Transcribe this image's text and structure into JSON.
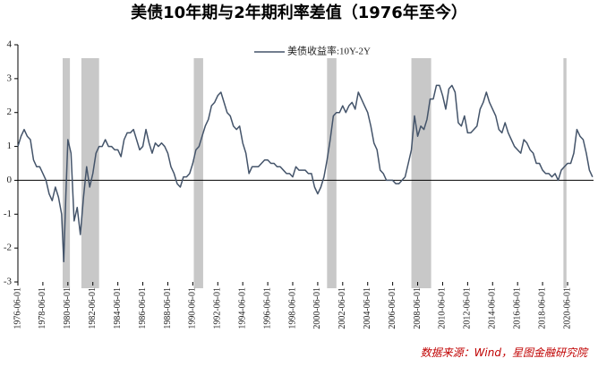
{
  "chart_data": {
    "type": "line",
    "title": "美债10年期与2年期利率差值（1976年至今）",
    "source": "数据来源：Wind，星图金融研究院",
    "legend_position": "top",
    "xlim": [
      "1976-06-01",
      "2022-06-30"
    ],
    "xticks": [
      "1976-06-01",
      "1978-06-01",
      "1980-06-01",
      "1982-06-01",
      "1984-06-01",
      "1986-06-01",
      "1988-06-01",
      "1990-06-01",
      "1992-06-01",
      "1994-06-01",
      "1996-06-01",
      "1998-06-01",
      "2000-06-01",
      "2002-06-01",
      "2004-06-01",
      "2006-06-01",
      "2008-06-01",
      "2010-06-01",
      "2012-06-01",
      "2014-06-01",
      "2016-06-01",
      "2018-06-01",
      "2020-06-01"
    ],
    "ylim": [
      -3,
      4
    ],
    "yticks": [
      -3,
      -2,
      -1,
      0,
      1,
      2,
      3,
      4
    ],
    "shaded_periods": [
      {
        "start": "1980-01-01",
        "end": "1980-07-31",
        "color": "#c8c8c8"
      },
      {
        "start": "1981-07-01",
        "end": "1982-11-30",
        "color": "#c8c8c8"
      },
      {
        "start": "1990-07-01",
        "end": "1991-03-31",
        "color": "#c8c8c8"
      },
      {
        "start": "2001-03-01",
        "end": "2001-11-30",
        "color": "#c8c8c8"
      },
      {
        "start": "2007-12-01",
        "end": "2009-06-30",
        "color": "#c8c8c8"
      },
      {
        "start": "2020-02-01",
        "end": "2020-04-30",
        "color": "#c8c8c8"
      }
    ],
    "x": [
      "1976-06-01",
      "1976-09-01",
      "1976-12-01",
      "1977-03-01",
      "1977-06-01",
      "1977-09-01",
      "1977-12-01",
      "1978-03-01",
      "1978-06-01",
      "1978-09-01",
      "1978-12-01",
      "1979-03-01",
      "1979-06-01",
      "1979-09-01",
      "1979-12-01",
      "1980-02-01",
      "1980-04-01",
      "1980-06-01",
      "1980-09-01",
      "1980-12-01",
      "1981-03-01",
      "1981-06-01",
      "1981-09-01",
      "1981-12-01",
      "1982-03-01",
      "1982-06-01",
      "1982-09-01",
      "1982-12-01",
      "1983-03-01",
      "1983-06-01",
      "1983-09-01",
      "1983-12-01",
      "1984-03-01",
      "1984-06-01",
      "1984-09-01",
      "1984-12-01",
      "1985-03-01",
      "1985-06-01",
      "1985-09-01",
      "1985-12-01",
      "1986-03-01",
      "1986-06-01",
      "1986-09-01",
      "1986-12-01",
      "1987-03-01",
      "1987-06-01",
      "1987-09-01",
      "1987-12-01",
      "1988-03-01",
      "1988-06-01",
      "1988-09-01",
      "1988-12-01",
      "1989-03-01",
      "1989-06-01",
      "1989-09-01",
      "1989-12-01",
      "1990-03-01",
      "1990-06-01",
      "1990-09-01",
      "1990-12-01",
      "1991-03-01",
      "1991-06-01",
      "1991-09-01",
      "1991-12-01",
      "1992-03-01",
      "1992-06-01",
      "1992-09-01",
      "1992-12-01",
      "1993-03-01",
      "1993-06-01",
      "1993-09-01",
      "1993-12-01",
      "1994-03-01",
      "1994-06-01",
      "1994-09-01",
      "1994-12-01",
      "1995-03-01",
      "1995-06-01",
      "1995-09-01",
      "1995-12-01",
      "1996-03-01",
      "1996-06-01",
      "1996-09-01",
      "1996-12-01",
      "1997-03-01",
      "1997-06-01",
      "1997-09-01",
      "1997-12-01",
      "1998-03-01",
      "1998-06-01",
      "1998-09-01",
      "1998-12-01",
      "1999-03-01",
      "1999-06-01",
      "1999-09-01",
      "1999-12-01",
      "2000-03-01",
      "2000-06-01",
      "2000-09-01",
      "2000-12-01",
      "2001-03-01",
      "2001-06-01",
      "2001-09-01",
      "2001-12-01",
      "2002-03-01",
      "2002-06-01",
      "2002-09-01",
      "2002-12-01",
      "2003-03-01",
      "2003-06-01",
      "2003-09-01",
      "2003-12-01",
      "2004-03-01",
      "2004-06-01",
      "2004-09-01",
      "2004-12-01",
      "2005-03-01",
      "2005-06-01",
      "2005-09-01",
      "2005-12-01",
      "2006-03-01",
      "2006-06-01",
      "2006-09-01",
      "2006-12-01",
      "2007-03-01",
      "2007-06-01",
      "2007-09-01",
      "2007-12-01",
      "2008-03-01",
      "2008-06-01",
      "2008-09-01",
      "2008-12-01",
      "2009-03-01",
      "2009-06-01",
      "2009-09-01",
      "2009-12-01",
      "2010-03-01",
      "2010-06-01",
      "2010-09-01",
      "2010-12-01",
      "2011-03-01",
      "2011-06-01",
      "2011-09-01",
      "2011-12-01",
      "2012-03-01",
      "2012-06-01",
      "2012-09-01",
      "2012-12-01",
      "2013-03-01",
      "2013-06-01",
      "2013-09-01",
      "2013-12-01",
      "2014-03-01",
      "2014-06-01",
      "2014-09-01",
      "2014-12-01",
      "2015-03-01",
      "2015-06-01",
      "2015-09-01",
      "2015-12-01",
      "2016-03-01",
      "2016-06-01",
      "2016-09-01",
      "2016-12-01",
      "2017-03-01",
      "2017-06-01",
      "2017-09-01",
      "2017-12-01",
      "2018-03-01",
      "2018-06-01",
      "2018-09-01",
      "2018-12-01",
      "2019-03-01",
      "2019-06-01",
      "2019-09-01",
      "2019-12-01",
      "2020-03-01",
      "2020-06-01",
      "2020-09-01",
      "2020-12-01",
      "2021-03-01",
      "2021-06-01",
      "2021-09-01",
      "2021-12-01",
      "2022-03-01",
      "2022-06-01"
    ],
    "series": [
      {
        "name": "美债收益率:10Y-2Y",
        "color": "#44546a",
        "values": [
          1.0,
          1.3,
          1.5,
          1.3,
          1.2,
          0.6,
          0.4,
          0.4,
          0.2,
          0.0,
          -0.4,
          -0.6,
          -0.2,
          -0.5,
          -1.0,
          -2.4,
          -0.5,
          1.2,
          0.8,
          -1.2,
          -0.8,
          -1.6,
          -0.5,
          0.4,
          -0.2,
          0.2,
          0.8,
          1.0,
          1.0,
          1.2,
          1.0,
          1.0,
          0.9,
          0.9,
          0.7,
          1.2,
          1.4,
          1.4,
          1.5,
          1.2,
          0.9,
          1.0,
          1.5,
          1.1,
          0.8,
          1.1,
          1.0,
          1.1,
          1.0,
          0.8,
          0.4,
          0.2,
          -0.1,
          -0.2,
          0.1,
          0.1,
          0.2,
          0.5,
          0.9,
          1.0,
          1.3,
          1.6,
          1.8,
          2.2,
          2.3,
          2.5,
          2.6,
          2.3,
          2.0,
          1.9,
          1.6,
          1.5,
          1.6,
          1.1,
          0.8,
          0.2,
          0.4,
          0.4,
          0.4,
          0.5,
          0.6,
          0.6,
          0.5,
          0.5,
          0.4,
          0.4,
          0.3,
          0.2,
          0.2,
          0.1,
          0.4,
          0.3,
          0.3,
          0.3,
          0.2,
          0.2,
          -0.2,
          -0.4,
          -0.2,
          0.1,
          0.6,
          1.2,
          1.9,
          2.0,
          2.0,
          2.2,
          2.0,
          2.2,
          2.3,
          2.1,
          2.6,
          2.4,
          2.2,
          2.0,
          1.6,
          1.1,
          0.9,
          0.3,
          0.2,
          0.0,
          0.0,
          0.0,
          -0.1,
          -0.1,
          0.0,
          0.1,
          0.5,
          0.9,
          1.9,
          1.3,
          1.6,
          1.5,
          1.8,
          2.4,
          2.4,
          2.8,
          2.8,
          2.5,
          2.1,
          2.7,
          2.8,
          2.6,
          1.7,
          1.6,
          1.9,
          1.4,
          1.4,
          1.5,
          1.6,
          2.1,
          2.3,
          2.6,
          2.3,
          2.1,
          1.9,
          1.5,
          1.4,
          1.7,
          1.4,
          1.2,
          1.0,
          0.9,
          0.8,
          1.2,
          1.1,
          0.9,
          0.8,
          0.5,
          0.5,
          0.3,
          0.2,
          0.2,
          0.1,
          0.2,
          0.0,
          0.3,
          0.4,
          0.5,
          0.5,
          0.8,
          1.5,
          1.3,
          1.2,
          0.8,
          0.3,
          0.1
        ]
      }
    ]
  }
}
